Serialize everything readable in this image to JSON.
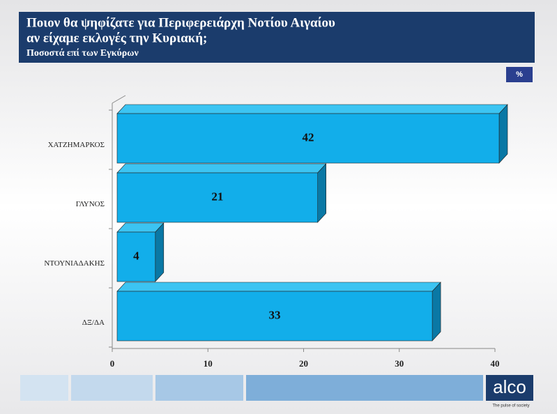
{
  "header": {
    "title": [
      "Ποιον θα ψηφίζατε για Περιφερειάρχη Νοτίου Αιγαίου",
      "αν είχαμε εκλογές την Κυριακή;"
    ],
    "subtitle": "Ποσοστά επί των Εγκύρων",
    "unit": "%"
  },
  "branding": {
    "logo": "alco",
    "tagline": "The pulse of society"
  },
  "chart_data": {
    "type": "hbar",
    "categories": [
      "ΧΑΤΖΗΜΑΡΚΟΣ",
      "ΓΛΥΝΟΣ",
      "ΝΤΟΥΝΙΑΔΑΚΗΣ",
      "ΔΞ/ΔΑ"
    ],
    "values": [
      42,
      21,
      4,
      33
    ],
    "color": "#12aeea",
    "xlim": [
      0,
      40
    ],
    "xticks": [
      0,
      10,
      20,
      30,
      40
    ]
  }
}
